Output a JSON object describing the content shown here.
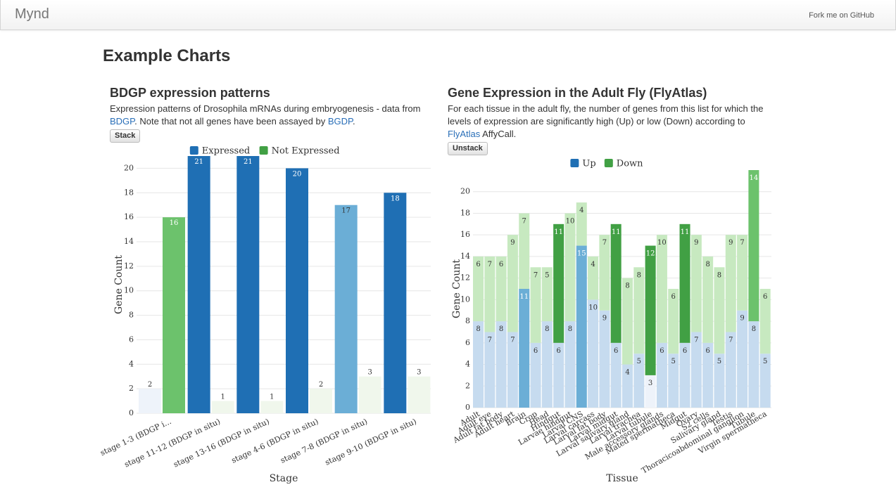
{
  "navbar": {
    "brand": "Mynd",
    "fork_link": "Fork me on GitHub"
  },
  "page_title": "Example Charts",
  "bdgp_panel": {
    "title": "BDGP expression patterns",
    "description_1": "Expression patterns of Drosophila mRNAs during embryogenesis - data from ",
    "link_1": "BDGP",
    "description_2": ". Note that not all genes have been assayed by ",
    "link_2": "BGDP",
    "description_3": ".",
    "button_label": "Stack"
  },
  "flyatlas_panel": {
    "title": "Gene Expression in the Adult Fly (FlyAtlas)",
    "description_1": "For each tissue in the adult fly, the number of genes from this list for which the levels of expression are significantly high (Up) or low (Down) according to ",
    "link_1": "FlyAtlas",
    "description_2": " AffyCall.",
    "button_label": "Unstack"
  },
  "colors": {
    "blue": "#1f6fb4",
    "green": "#6cc26c",
    "blue_light": "#6baed6",
    "green_dark": "#41a044",
    "blue_faded": "#c6dbef",
    "green_faded": "#c7e9c0",
    "blue_pale": "#eef3fa",
    "green_pale": "#f0f7ec"
  },
  "chart_data": [
    {
      "type": "bar",
      "mode": "grouped",
      "xlabel": "Stage",
      "ylabel": "Gene Count",
      "ylim": [
        0,
        21
      ],
      "yticks": [
        0,
        2,
        4,
        6,
        8,
        10,
        12,
        14,
        16,
        18,
        20
      ],
      "grid": true,
      "legend_position": "top",
      "categories": [
        "stage 1-3 (BDGP i...",
        "stage 11-12 (BDGP in situ)",
        "stage 13-16 (BDGP in situ)",
        "stage 4-6 (BDGP in situ)",
        "stage 7-8 (BDGP in situ)",
        "stage 9-10 (BDGP in situ)"
      ],
      "series": [
        {
          "name": "Expressed",
          "values": [
            2,
            21,
            21,
            20,
            17,
            18
          ],
          "shade": [
            "pale",
            "normal",
            "normal",
            "normal",
            "light",
            "normal"
          ]
        },
        {
          "name": "Not Expressed",
          "values": [
            16,
            1,
            1,
            2,
            3,
            3
          ],
          "shade": [
            "normal",
            "pale",
            "pale",
            "pale",
            "pale",
            "pale"
          ]
        }
      ]
    },
    {
      "type": "bar",
      "mode": "stacked",
      "xlabel": "Tissue",
      "ylabel": "Gene Count",
      "ylim": [
        0,
        22
      ],
      "yticks": [
        0,
        2,
        4,
        6,
        8,
        10,
        12,
        14,
        16,
        18,
        20
      ],
      "grid": true,
      "legend_position": "top",
      "categories": [
        "Adult",
        "Adult eye",
        "Adult fat body",
        "Adult heart",
        "Brain",
        "Crop",
        "Head",
        "Hindgut",
        "Larvae hindgut",
        "Larval CNS",
        "Larval carcass",
        "Larval fat body",
        "Larval midgut",
        "Larval salivary gland",
        "Larval trachea",
        "Larval tubule",
        "Male accessory glands",
        "Mated spermatheca",
        "Midgut",
        "Ovary",
        "S2 cells",
        "Salivary gland",
        "Testis",
        "Thoracicoabdominal ganglion",
        "Tubule",
        "Virgin spermatheca"
      ],
      "series": [
        {
          "name": "Up",
          "values": [
            8,
            7,
            8,
            7,
            11,
            6,
            8,
            6,
            8,
            15,
            10,
            9,
            6,
            4,
            5,
            3,
            6,
            5,
            6,
            7,
            6,
            5,
            7,
            9,
            8,
            5
          ],
          "shade": [
            "faded",
            "faded",
            "faded",
            "faded",
            "light",
            "faded",
            "faded",
            "faded",
            "faded",
            "light",
            "faded",
            "faded",
            "faded",
            "faded",
            "faded",
            "pale",
            "faded",
            "faded",
            "faded",
            "faded",
            "faded",
            "faded",
            "faded",
            "faded",
            "faded",
            "faded"
          ]
        },
        {
          "name": "Down",
          "values": [
            6,
            7,
            6,
            9,
            7,
            7,
            5,
            11,
            10,
            4,
            4,
            7,
            11,
            8,
            8,
            12,
            10,
            6,
            11,
            9,
            8,
            8,
            9,
            7,
            14,
            6
          ],
          "shade": [
            "faded",
            "faded",
            "faded",
            "faded",
            "faded",
            "faded",
            "faded",
            "dark",
            "faded",
            "faded",
            "faded",
            "faded",
            "dark",
            "faded",
            "faded",
            "dark",
            "faded",
            "faded",
            "dark",
            "faded",
            "faded",
            "faded",
            "faded",
            "faded",
            "normal",
            "faded"
          ]
        }
      ]
    }
  ]
}
